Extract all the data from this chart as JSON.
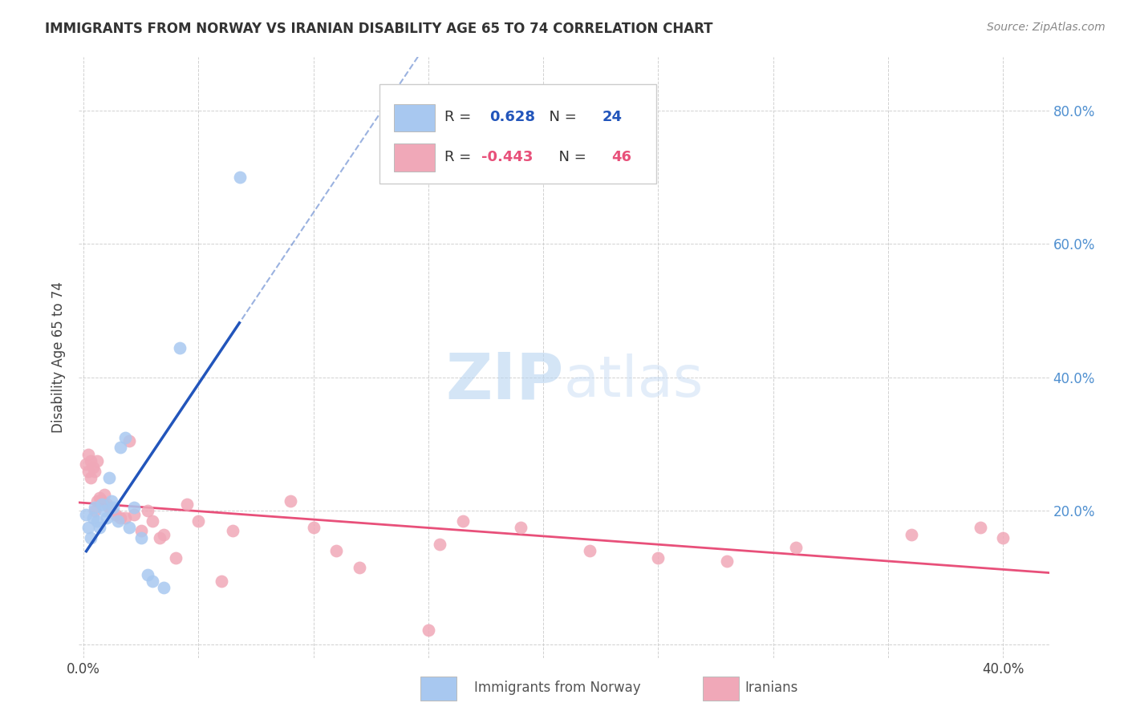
{
  "title": "IMMIGRANTS FROM NORWAY VS IRANIAN DISABILITY AGE 65 TO 74 CORRELATION CHART",
  "source": "Source: ZipAtlas.com",
  "ylabel": "Disability Age 65 to 74",
  "xlim": [
    -0.002,
    0.42
  ],
  "ylim": [
    -0.02,
    0.88
  ],
  "norway_R": "0.628",
  "norway_N": "24",
  "iranian_R": "-0.443",
  "iranian_N": "46",
  "norway_color": "#a8c8f0",
  "iranian_color": "#f0a8b8",
  "norway_line_color": "#2255bb",
  "iranian_line_color": "#e8507a",
  "norway_x": [
    0.001,
    0.002,
    0.003,
    0.004,
    0.005,
    0.006,
    0.007,
    0.008,
    0.009,
    0.01,
    0.011,
    0.012,
    0.013,
    0.015,
    0.016,
    0.018,
    0.02,
    0.022,
    0.025,
    0.028,
    0.03,
    0.035,
    0.042,
    0.068
  ],
  "norway_y": [
    0.195,
    0.175,
    0.16,
    0.19,
    0.205,
    0.185,
    0.175,
    0.21,
    0.2,
    0.19,
    0.25,
    0.215,
    0.205,
    0.185,
    0.295,
    0.31,
    0.175,
    0.205,
    0.16,
    0.105,
    0.095,
    0.085,
    0.445,
    0.7
  ],
  "iranian_x": [
    0.001,
    0.002,
    0.002,
    0.003,
    0.003,
    0.004,
    0.005,
    0.005,
    0.006,
    0.006,
    0.007,
    0.008,
    0.009,
    0.01,
    0.011,
    0.012,
    0.014,
    0.016,
    0.018,
    0.02,
    0.022,
    0.025,
    0.028,
    0.03,
    0.033,
    0.035,
    0.04,
    0.045,
    0.05,
    0.06,
    0.065,
    0.09,
    0.1,
    0.11,
    0.12,
    0.15,
    0.155,
    0.165,
    0.19,
    0.22,
    0.25,
    0.28,
    0.31,
    0.36,
    0.39,
    0.4
  ],
  "iranian_y": [
    0.27,
    0.26,
    0.285,
    0.25,
    0.275,
    0.265,
    0.26,
    0.2,
    0.275,
    0.215,
    0.22,
    0.215,
    0.225,
    0.21,
    0.205,
    0.2,
    0.195,
    0.19,
    0.19,
    0.305,
    0.195,
    0.17,
    0.2,
    0.185,
    0.16,
    0.165,
    0.13,
    0.21,
    0.185,
    0.095,
    0.17,
    0.215,
    0.175,
    0.14,
    0.115,
    0.022,
    0.15,
    0.185,
    0.175,
    0.14,
    0.13,
    0.125,
    0.145,
    0.165,
    0.175,
    0.16
  ],
  "watermark_zip": "ZIP",
  "watermark_atlas": "atlas",
  "background_color": "#ffffff",
  "grid_color": "#cccccc",
  "right_ytick_color": "#5090d0"
}
